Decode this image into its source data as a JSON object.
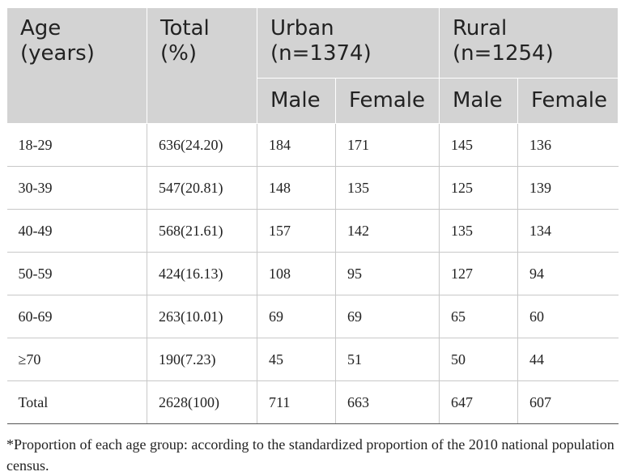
{
  "header": {
    "age": [
      "Age",
      "(years)"
    ],
    "total": [
      "Total",
      "(%)"
    ],
    "urban": [
      "Urban",
      "(n=1374)"
    ],
    "rural": [
      "Rural",
      "(n=1254)"
    ],
    "sub": [
      "Male",
      "Female",
      "Male",
      "Female"
    ]
  },
  "rows": [
    [
      "18-29",
      "636(24.20)",
      "184",
      "171",
      "145",
      "136"
    ],
    [
      "30-39",
      "547(20.81)",
      "148",
      "135",
      "125",
      "139"
    ],
    [
      "40-49",
      "568(21.61)",
      "157",
      "142",
      "135",
      "134"
    ],
    [
      "50-59",
      "424(16.13)",
      "108",
      "95",
      "127",
      "94"
    ],
    [
      "60-69",
      "263(10.01)",
      "69",
      "69",
      "65",
      "60"
    ],
    [
      "≥70",
      "190(7.23)",
      "45",
      "51",
      "50",
      "44"
    ],
    [
      "Total",
      "2628(100)",
      "711",
      "663",
      "647",
      "607"
    ]
  ],
  "footnote": "*Proportion of each age group: according to the standardized proportion of the 2010 national population census."
}
